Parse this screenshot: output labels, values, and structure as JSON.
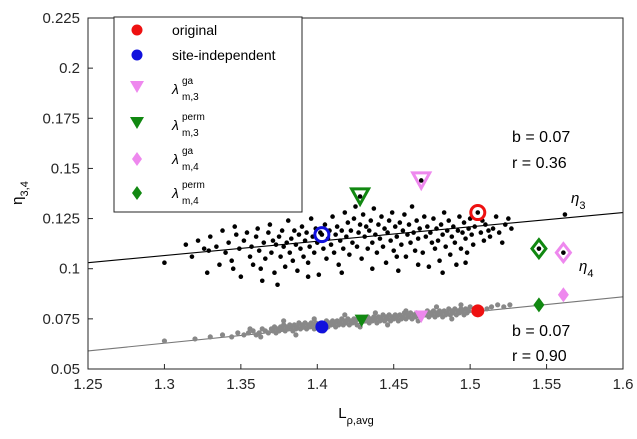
{
  "chart_data": {
    "type": "scatter",
    "xlabel": "L",
    "xlabel_sub": "ρ,avg",
    "ylabel": "η",
    "ylabel_sub": "3,4",
    "xlim": [
      1.25,
      1.6
    ],
    "ylim": [
      0.05,
      0.225
    ],
    "xticks": [
      "1.25",
      "1.3",
      "1.35",
      "1.4",
      "1.45",
      "1.5",
      "1.55",
      "1.6"
    ],
    "yticks": [
      "0.05",
      "0.075",
      "0.1",
      "0.125",
      "0.15",
      "0.175",
      "0.2",
      "0.225"
    ],
    "grid": false,
    "legend_position": "top-left",
    "legend": [
      {
        "label": "original",
        "marker": "circle",
        "color": "#ee1111"
      },
      {
        "label": "site-independent",
        "marker": "circle",
        "color": "#1111dd"
      },
      {
        "label": "λ",
        "sup": "ga",
        "sub": "m,3",
        "marker": "triangle-down",
        "color": "#ee88ee"
      },
      {
        "label": "λ",
        "sup": "perm",
        "sub": "m,3",
        "marker": "triangle-down",
        "color": "#118811"
      },
      {
        "label": "λ",
        "sup": "ga",
        "sub": "m,4",
        "marker": "diamond",
        "color": "#ee88ee"
      },
      {
        "label": "λ",
        "sup": "perm",
        "sub": "m,4",
        "marker": "diamond",
        "color": "#118811"
      }
    ],
    "fit_eta3": {
      "x": [
        1.25,
        1.6
      ],
      "y": [
        0.103,
        0.128
      ],
      "label": "η",
      "label_sub": "3",
      "b": "b = 0.07",
      "r": "r = 0.36"
    },
    "fit_eta4": {
      "x": [
        1.25,
        1.6
      ],
      "y": [
        0.059,
        0.086
      ],
      "label": "η",
      "label_sub": "4",
      "b": "b = 0.07",
      "r": "r = 0.90"
    },
    "special_eta3": [
      {
        "kind": "original",
        "x": 1.505,
        "y": 0.128
      },
      {
        "kind": "site-independent",
        "x": 1.403,
        "y": 0.117
      },
      {
        "kind": "ga3",
        "x": 1.468,
        "y": 0.144
      },
      {
        "kind": "perm3",
        "x": 1.428,
        "y": 0.136
      },
      {
        "kind": "ga4",
        "x": 1.561,
        "y": 0.108
      },
      {
        "kind": "perm4",
        "x": 1.545,
        "y": 0.11
      }
    ],
    "special_eta4": [
      {
        "kind": "original",
        "x": 1.505,
        "y": 0.079
      },
      {
        "kind": "site-independent",
        "x": 1.403,
        "y": 0.071
      },
      {
        "kind": "ga3",
        "x": 1.468,
        "y": 0.076
      },
      {
        "kind": "perm3",
        "x": 1.429,
        "y": 0.074
      },
      {
        "kind": "ga4",
        "x": 1.561,
        "y": 0.087
      },
      {
        "kind": "perm4",
        "x": 1.545,
        "y": 0.082
      }
    ],
    "eta3_scatter": [
      [
        1.3,
        0.103
      ],
      [
        1.314,
        0.112
      ],
      [
        1.318,
        0.106
      ],
      [
        1.322,
        0.114
      ],
      [
        1.326,
        0.11
      ],
      [
        1.328,
        0.098
      ],
      [
        1.33,
        0.116
      ],
      [
        1.334,
        0.111
      ],
      [
        1.336,
        0.102
      ],
      [
        1.338,
        0.119
      ],
      [
        1.34,
        0.108
      ],
      [
        1.342,
        0.113
      ],
      [
        1.344,
        0.104
      ],
      [
        1.345,
        0.1
      ],
      [
        1.347,
        0.117
      ],
      [
        1.349,
        0.11
      ],
      [
        1.35,
        0.096
      ],
      [
        1.352,
        0.114
      ],
      [
        1.354,
        0.118
      ],
      [
        1.356,
        0.106
      ],
      [
        1.357,
        0.111
      ],
      [
        1.358,
        0.102
      ],
      [
        1.36,
        0.116
      ],
      [
        1.361,
        0.12
      ],
      [
        1.362,
        0.109
      ],
      [
        1.364,
        0.094
      ],
      [
        1.365,
        0.113
      ],
      [
        1.366,
        0.105
      ],
      [
        1.368,
        0.118
      ],
      [
        1.369,
        0.122
      ],
      [
        1.37,
        0.108
      ],
      [
        1.371,
        0.114
      ],
      [
        1.372,
        0.098
      ],
      [
        1.373,
        0.112
      ],
      [
        1.374,
        0.092
      ],
      [
        1.375,
        0.116
      ],
      [
        1.376,
        0.106
      ],
      [
        1.377,
        0.119
      ],
      [
        1.378,
        0.111
      ],
      [
        1.379,
        0.101
      ],
      [
        1.38,
        0.113
      ],
      [
        1.381,
        0.124
      ],
      [
        1.382,
        0.108
      ],
      [
        1.383,
        0.115
      ],
      [
        1.384,
        0.104
      ],
      [
        1.385,
        0.119
      ],
      [
        1.386,
        0.112
      ],
      [
        1.387,
        0.099
      ],
      [
        1.388,
        0.117
      ],
      [
        1.389,
        0.11
      ],
      [
        1.39,
        0.121
      ],
      [
        1.391,
        0.106
      ],
      [
        1.392,
        0.114
      ],
      [
        1.393,
        0.118
      ],
      [
        1.394,
        0.103
      ],
      [
        1.395,
        0.111
      ],
      [
        1.396,
        0.125
      ],
      [
        1.397,
        0.116
      ],
      [
        1.398,
        0.108
      ],
      [
        1.399,
        0.12
      ],
      [
        1.4,
        0.113
      ],
      [
        1.401,
        0.097
      ],
      [
        1.402,
        0.118
      ],
      [
        1.404,
        0.11
      ],
      [
        1.405,
        0.122
      ],
      [
        1.406,
        0.105
      ],
      [
        1.407,
        0.115
      ],
      [
        1.408,
        0.119
      ],
      [
        1.409,
        0.112
      ],
      [
        1.41,
        0.126
      ],
      [
        1.411,
        0.108
      ],
      [
        1.412,
        0.117
      ],
      [
        1.413,
        0.121
      ],
      [
        1.414,
        0.102
      ],
      [
        1.415,
        0.114
      ],
      [
        1.416,
        0.119
      ],
      [
        1.417,
        0.11
      ],
      [
        1.418,
        0.128
      ],
      [
        1.419,
        0.116
      ],
      [
        1.42,
        0.123
      ],
      [
        1.421,
        0.107
      ],
      [
        1.422,
        0.119
      ],
      [
        1.423,
        0.113
      ],
      [
        1.424,
        0.125
      ],
      [
        1.425,
        0.131
      ],
      [
        1.426,
        0.111
      ],
      [
        1.427,
        0.118
      ],
      [
        1.428,
        0.122
      ],
      [
        1.429,
        0.105
      ],
      [
        1.43,
        0.127
      ],
      [
        1.431,
        0.116
      ],
      [
        1.432,
        0.121
      ],
      [
        1.433,
        0.11
      ],
      [
        1.434,
        0.119
      ],
      [
        1.435,
        0.124
      ],
      [
        1.436,
        0.113
      ],
      [
        1.437,
        0.13
      ],
      [
        1.438,
        0.117
      ],
      [
        1.439,
        0.108
      ],
      [
        1.44,
        0.122
      ],
      [
        1.441,
        0.115
      ],
      [
        1.442,
        0.126
      ],
      [
        1.443,
        0.111
      ],
      [
        1.444,
        0.12
      ],
      [
        1.445,
        0.103
      ],
      [
        1.446,
        0.118
      ],
      [
        1.447,
        0.124
      ],
      [
        1.448,
        0.114
      ],
      [
        1.449,
        0.128
      ],
      [
        1.45,
        0.109
      ],
      [
        1.451,
        0.121
      ],
      [
        1.452,
        0.116
      ],
      [
        1.453,
        0.099
      ],
      [
        1.454,
        0.123
      ],
      [
        1.455,
        0.112
      ],
      [
        1.456,
        0.119
      ],
      [
        1.457,
        0.127
      ],
      [
        1.458,
        0.106
      ],
      [
        1.459,
        0.117
      ],
      [
        1.46,
        0.122
      ],
      [
        1.461,
        0.113
      ],
      [
        1.462,
        0.131
      ],
      [
        1.463,
        0.118
      ],
      [
        1.464,
        0.109
      ],
      [
        1.465,
        0.124
      ],
      [
        1.466,
        0.115
      ],
      [
        1.467,
        0.12
      ],
      [
        1.469,
        0.108
      ],
      [
        1.47,
        0.126
      ],
      [
        1.471,
        0.116
      ],
      [
        1.472,
        0.121
      ],
      [
        1.473,
        0.101
      ],
      [
        1.474,
        0.118
      ],
      [
        1.475,
        0.113
      ],
      [
        1.476,
        0.125
      ],
      [
        1.477,
        0.11
      ],
      [
        1.478,
        0.12
      ],
      [
        1.479,
        0.114
      ],
      [
        1.48,
        0.104
      ],
      [
        1.481,
        0.122
      ],
      [
        1.482,
        0.117
      ],
      [
        1.483,
        0.128
      ],
      [
        1.484,
        0.111
      ],
      [
        1.485,
        0.119
      ],
      [
        1.486,
        0.124
      ],
      [
        1.487,
        0.107
      ],
      [
        1.488,
        0.116
      ],
      [
        1.489,
        0.121
      ],
      [
        1.49,
        0.113
      ],
      [
        1.491,
        0.102
      ],
      [
        1.492,
        0.119
      ],
      [
        1.493,
        0.126
      ],
      [
        1.494,
        0.11
      ],
      [
        1.495,
        0.118
      ],
      [
        1.496,
        0.123
      ],
      [
        1.497,
        0.115
      ],
      [
        1.498,
        0.108
      ],
      [
        1.499,
        0.12
      ],
      [
        1.5,
        0.125
      ],
      [
        1.501,
        0.117
      ],
      [
        1.502,
        0.112
      ],
      [
        1.503,
        0.121
      ],
      [
        1.507,
        0.118
      ],
      [
        1.508,
        0.124
      ],
      [
        1.509,
        0.114
      ],
      [
        1.51,
        0.122
      ],
      [
        1.512,
        0.119
      ],
      [
        1.513,
        0.116
      ],
      [
        1.515,
        0.12
      ],
      [
        1.517,
        0.126
      ],
      [
        1.519,
        0.118
      ],
      [
        1.521,
        0.113
      ],
      [
        1.523,
        0.122
      ],
      [
        1.525,
        0.125
      ],
      [
        1.527,
        0.12
      ],
      [
        1.562,
        0.127
      ],
      [
        1.329,
        0.109
      ],
      [
        1.346,
        0.121
      ],
      [
        1.363,
        0.1
      ],
      [
        1.394,
        0.096
      ],
      [
        1.416,
        0.098
      ],
      [
        1.436,
        0.1
      ],
      [
        1.452,
        0.106
      ],
      [
        1.466,
        0.102
      ],
      [
        1.482,
        0.098
      ],
      [
        1.497,
        0.103
      ]
    ],
    "eta4_scatter": [
      [
        1.3,
        0.064
      ],
      [
        1.32,
        0.065
      ],
      [
        1.33,
        0.066
      ],
      [
        1.338,
        0.067
      ],
      [
        1.344,
        0.066
      ],
      [
        1.348,
        0.068
      ],
      [
        1.352,
        0.067
      ],
      [
        1.355,
        0.068
      ],
      [
        1.358,
        0.069
      ],
      [
        1.36,
        0.067
      ],
      [
        1.362,
        0.068
      ],
      [
        1.364,
        0.07
      ],
      [
        1.366,
        0.069
      ],
      [
        1.368,
        0.068
      ],
      [
        1.37,
        0.07
      ],
      [
        1.371,
        0.069
      ],
      [
        1.372,
        0.071
      ],
      [
        1.373,
        0.068
      ],
      [
        1.374,
        0.07
      ],
      [
        1.375,
        0.069
      ],
      [
        1.376,
        0.071
      ],
      [
        1.377,
        0.07
      ],
      [
        1.378,
        0.072
      ],
      [
        1.379,
        0.069
      ],
      [
        1.38,
        0.071
      ],
      [
        1.381,
        0.07
      ],
      [
        1.382,
        0.072
      ],
      [
        1.383,
        0.071
      ],
      [
        1.384,
        0.069
      ],
      [
        1.385,
        0.072
      ],
      [
        1.386,
        0.07
      ],
      [
        1.387,
        0.071
      ],
      [
        1.388,
        0.073
      ],
      [
        1.389,
        0.07
      ],
      [
        1.39,
        0.072
      ],
      [
        1.391,
        0.071
      ],
      [
        1.392,
        0.073
      ],
      [
        1.393,
        0.07
      ],
      [
        1.394,
        0.072
      ],
      [
        1.395,
        0.071
      ],
      [
        1.396,
        0.073
      ],
      [
        1.397,
        0.072
      ],
      [
        1.398,
        0.07
      ],
      [
        1.399,
        0.073
      ],
      [
        1.4,
        0.071
      ],
      [
        1.401,
        0.072
      ],
      [
        1.405,
        0.072
      ],
      [
        1.406,
        0.074
      ],
      [
        1.407,
        0.071
      ],
      [
        1.408,
        0.073
      ],
      [
        1.409,
        0.072
      ],
      [
        1.41,
        0.074
      ],
      [
        1.411,
        0.073
      ],
      [
        1.412,
        0.071
      ],
      [
        1.413,
        0.074
      ],
      [
        1.414,
        0.072
      ],
      [
        1.415,
        0.073
      ],
      [
        1.416,
        0.075
      ],
      [
        1.417,
        0.072
      ],
      [
        1.418,
        0.074
      ],
      [
        1.419,
        0.073
      ],
      [
        1.42,
        0.075
      ],
      [
        1.421,
        0.072
      ],
      [
        1.422,
        0.074
      ],
      [
        1.423,
        0.073
      ],
      [
        1.424,
        0.075
      ],
      [
        1.425,
        0.074
      ],
      [
        1.426,
        0.072
      ],
      [
        1.427,
        0.075
      ],
      [
        1.432,
        0.074
      ],
      [
        1.433,
        0.076
      ],
      [
        1.434,
        0.073
      ],
      [
        1.435,
        0.075
      ],
      [
        1.436,
        0.074
      ],
      [
        1.437,
        0.076
      ],
      [
        1.438,
        0.075
      ],
      [
        1.439,
        0.073
      ],
      [
        1.44,
        0.076
      ],
      [
        1.441,
        0.074
      ],
      [
        1.442,
        0.075
      ],
      [
        1.443,
        0.077
      ],
      [
        1.444,
        0.074
      ],
      [
        1.445,
        0.076
      ],
      [
        1.446,
        0.075
      ],
      [
        1.447,
        0.077
      ],
      [
        1.448,
        0.074
      ],
      [
        1.449,
        0.076
      ],
      [
        1.45,
        0.075
      ],
      [
        1.451,
        0.077
      ],
      [
        1.452,
        0.076
      ],
      [
        1.453,
        0.074
      ],
      [
        1.454,
        0.077
      ],
      [
        1.455,
        0.075
      ],
      [
        1.456,
        0.076
      ],
      [
        1.457,
        0.078
      ],
      [
        1.458,
        0.075
      ],
      [
        1.459,
        0.077
      ],
      [
        1.46,
        0.076
      ],
      [
        1.461,
        0.078
      ],
      [
        1.462,
        0.075
      ],
      [
        1.463,
        0.077
      ],
      [
        1.464,
        0.076
      ],
      [
        1.465,
        0.078
      ],
      [
        1.466,
        0.077
      ],
      [
        1.471,
        0.077
      ],
      [
        1.472,
        0.079
      ],
      [
        1.473,
        0.076
      ],
      [
        1.474,
        0.078
      ],
      [
        1.475,
        0.077
      ],
      [
        1.476,
        0.079
      ],
      [
        1.477,
        0.076
      ],
      [
        1.478,
        0.078
      ],
      [
        1.479,
        0.077
      ],
      [
        1.48,
        0.079
      ],
      [
        1.481,
        0.078
      ],
      [
        1.482,
        0.076
      ],
      [
        1.483,
        0.079
      ],
      [
        1.484,
        0.077
      ],
      [
        1.485,
        0.078
      ],
      [
        1.486,
        0.08
      ],
      [
        1.487,
        0.077
      ],
      [
        1.488,
        0.079
      ],
      [
        1.489,
        0.078
      ],
      [
        1.49,
        0.08
      ],
      [
        1.491,
        0.077
      ],
      [
        1.492,
        0.079
      ],
      [
        1.493,
        0.078
      ],
      [
        1.494,
        0.08
      ],
      [
        1.495,
        0.079
      ],
      [
        1.496,
        0.077
      ],
      [
        1.497,
        0.08
      ],
      [
        1.498,
        0.078
      ],
      [
        1.499,
        0.079
      ],
      [
        1.5,
        0.081
      ],
      [
        1.511,
        0.08
      ],
      [
        1.514,
        0.081
      ],
      [
        1.518,
        0.082
      ],
      [
        1.522,
        0.081
      ],
      [
        1.526,
        0.082
      ],
      [
        1.363,
        0.066
      ],
      [
        1.386,
        0.067
      ],
      [
        1.404,
        0.069
      ],
      [
        1.428,
        0.071
      ],
      [
        1.446,
        0.072
      ],
      [
        1.466,
        0.074
      ],
      [
        1.488,
        0.075
      ],
      [
        1.356,
        0.07
      ],
      [
        1.378,
        0.074
      ],
      [
        1.398,
        0.075
      ],
      [
        1.418,
        0.077
      ],
      [
        1.438,
        0.078
      ],
      [
        1.458,
        0.079
      ],
      [
        1.478,
        0.081
      ],
      [
        1.494,
        0.082
      ]
    ]
  }
}
